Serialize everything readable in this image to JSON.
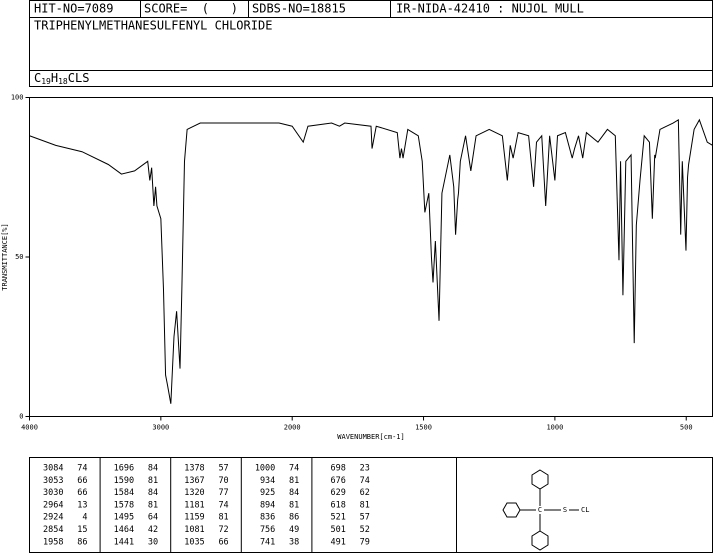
{
  "header": {
    "hit_no": "HIT-NO=7089",
    "score": "SCORE=  (   )",
    "sdbs_no": "SDBS-NO=18815",
    "ir_no": "IR-NIDA-42410 : NUJOL MULL",
    "name": "TRIPHENYLMETHANESULFENYL CHLORIDE",
    "formula": [
      "C",
      "19",
      "H",
      "18",
      "CLS"
    ]
  },
  "chart_data": {
    "type": "line",
    "color": "#000000",
    "xlabel": "WAVENUMBER[cm-1]",
    "ylabel": "TRANSMITTANCE[%]",
    "xlim": [
      4000,
      400
    ],
    "xticks": [
      4000,
      3000,
      2000,
      1500,
      1000,
      500
    ],
    "x_scale": {
      "break": 2000,
      "factor": 2
    },
    "ylim": [
      0,
      100
    ],
    "yticks": [
      0,
      50,
      100
    ],
    "x": [
      4000,
      3800,
      3600,
      3400,
      3300,
      3200,
      3100,
      3084,
      3070,
      3053,
      3040,
      3030,
      3000,
      2980,
      2964,
      2950,
      2924,
      2900,
      2880,
      2854,
      2840,
      2820,
      2800,
      2700,
      2500,
      2300,
      2100,
      2000,
      1958,
      1940,
      1850,
      1820,
      1800,
      1700,
      1696,
      1680,
      1600,
      1590,
      1584,
      1578,
      1560,
      1520,
      1505,
      1495,
      1480,
      1470,
      1464,
      1455,
      1441,
      1430,
      1400,
      1385,
      1378,
      1370,
      1367,
      1360,
      1340,
      1320,
      1300,
      1250,
      1200,
      1181,
      1170,
      1159,
      1140,
      1100,
      1081,
      1070,
      1050,
      1035,
      1020,
      1000,
      990,
      960,
      934,
      925,
      910,
      894,
      880,
      836,
      800,
      770,
      756,
      750,
      741,
      730,
      710,
      698,
      690,
      676,
      660,
      640,
      629,
      620,
      618,
      600,
      550,
      530,
      521,
      515,
      501,
      495,
      491,
      470,
      450,
      420,
      400
    ],
    "values": [
      88,
      85,
      83,
      79,
      76,
      77,
      80,
      74,
      78,
      66,
      72,
      66,
      62,
      40,
      13,
      10,
      4,
      25,
      33,
      15,
      40,
      80,
      90,
      92,
      92,
      92,
      92,
      91,
      86,
      91,
      92,
      91,
      92,
      91,
      84,
      91,
      89,
      81,
      84,
      81,
      90,
      88,
      80,
      64,
      70,
      50,
      42,
      55,
      30,
      70,
      82,
      72,
      57,
      68,
      70,
      80,
      88,
      77,
      88,
      90,
      88,
      74,
      85,
      81,
      89,
      88,
      72,
      86,
      88,
      66,
      88,
      74,
      88,
      89,
      81,
      84,
      88,
      81,
      89,
      86,
      90,
      88,
      49,
      80,
      38,
      80,
      82,
      23,
      60,
      74,
      88,
      86,
      62,
      82,
      81,
      90,
      92,
      93,
      57,
      80,
      52,
      75,
      79,
      90,
      93,
      86,
      85
    ],
    "peak_table": {
      "wavenumbers": [
        3084,
        3053,
        3030,
        2964,
        2924,
        2854,
        1958,
        1696,
        1590,
        1584,
        1578,
        1495,
        1464,
        1441,
        1378,
        1367,
        1320,
        1181,
        1159,
        1081,
        1035,
        1000,
        934,
        925,
        894,
        836,
        756,
        741,
        698,
        676,
        629,
        618,
        521,
        501,
        491
      ],
      "transmittance": [
        74,
        66,
        66,
        13,
        4,
        15,
        86,
        84,
        81,
        84,
        81,
        64,
        42,
        30,
        57,
        70,
        77,
        74,
        81,
        72,
        66,
        74,
        81,
        84,
        81,
        86,
        49,
        38,
        23,
        74,
        62,
        81,
        57,
        52,
        79
      ]
    },
    "structure_labels": [
      "C",
      "S",
      "CL"
    ]
  }
}
